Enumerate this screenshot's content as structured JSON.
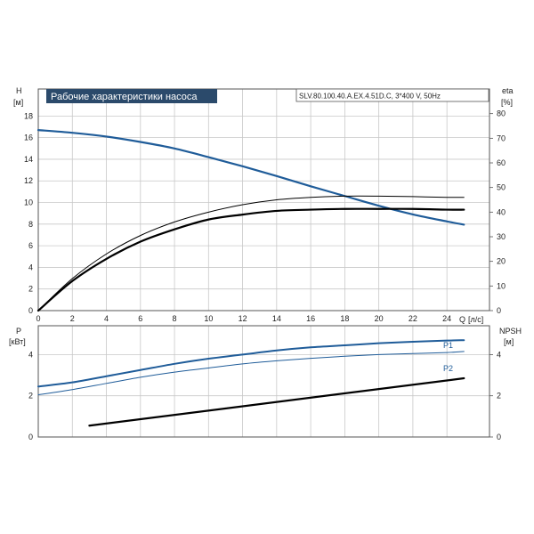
{
  "chart_data": [
    {
      "type": "line",
      "title": "Рабочие характеристики насоса",
      "model": "SLV.80.100.40.A.EX.4.51D.C, 3*400 V, 50Hz",
      "xlabel": "Q",
      "xunit": "[л/с]",
      "ylabel_left": "H",
      "yunit_left": "[м]",
      "ylabel_right": "eta",
      "yunit_right": "[%]",
      "xlim": [
        0,
        26.5
      ],
      "ylim_left": [
        0,
        20.5
      ],
      "ylim_right": [
        0,
        90
      ],
      "x_ticks": [
        "0",
        "2",
        "4",
        "6",
        "8",
        "10",
        "12",
        "14",
        "16",
        "18",
        "20",
        "22",
        "24"
      ],
      "y_ticks_left": [
        "0",
        "2",
        "4",
        "6",
        "8",
        "10",
        "12",
        "14",
        "16",
        "18"
      ],
      "y_ticks_right": [
        "0",
        "10",
        "20",
        "30",
        "40",
        "50",
        "60",
        "70",
        "80"
      ],
      "grid": true,
      "series": [
        {
          "axis": "left",
          "color": "#1f5c99",
          "x": [
            0,
            2,
            4,
            6,
            8,
            10,
            12,
            14,
            16,
            18,
            20,
            22,
            24,
            25
          ],
          "values": [
            16.7,
            16.45,
            16.1,
            15.6,
            15.0,
            14.2,
            13.35,
            12.45,
            11.5,
            10.6,
            9.7,
            8.9,
            8.25,
            7.95
          ]
        },
        {
          "axis": "right",
          "color": "#000000",
          "x": [
            0,
            2,
            4,
            6,
            8,
            10,
            12,
            14,
            16,
            18,
            20,
            22,
            24,
            25
          ],
          "values": [
            0,
            12,
            21,
            28,
            33,
            37,
            39,
            40.5,
            41,
            41.3,
            41.3,
            41.3,
            41,
            41
          ]
        },
        {
          "axis": "right",
          "color": "#000000",
          "x": [
            0,
            2,
            4,
            6,
            8,
            10,
            12,
            14,
            16,
            18,
            20,
            22,
            24,
            25
          ],
          "values": [
            0,
            13,
            23,
            30.5,
            36,
            40,
            43,
            45,
            46,
            46.5,
            46.5,
            46.3,
            46,
            46
          ]
        }
      ]
    },
    {
      "type": "line",
      "ylabel_left": "P",
      "yunit_left": "[кВт]",
      "ylabel_right": "NPSH",
      "yunit_right": "[м]",
      "xlim": [
        0,
        26.5
      ],
      "ylim_left": [
        0,
        5.4
      ],
      "ylim_right": [
        0,
        5.4
      ],
      "y_ticks_left": [
        "0",
        "2",
        "4"
      ],
      "y_ticks_right": [
        "0",
        "2",
        "4"
      ],
      "grid": true,
      "series": [
        {
          "name": "P1",
          "axis": "left",
          "color": "#1f5c99",
          "x": [
            0,
            2,
            4,
            6,
            8,
            10,
            12,
            14,
            16,
            18,
            20,
            22,
            24,
            25
          ],
          "values": [
            2.45,
            2.65,
            2.95,
            3.25,
            3.55,
            3.8,
            4.0,
            4.2,
            4.35,
            4.45,
            4.55,
            4.62,
            4.68,
            4.7
          ]
        },
        {
          "name": "P2",
          "axis": "left",
          "color": "#1f5c99",
          "x": [
            0,
            2,
            4,
            6,
            8,
            10,
            12,
            14,
            16,
            18,
            20,
            22,
            24,
            25
          ],
          "values": [
            2.05,
            2.3,
            2.6,
            2.9,
            3.15,
            3.35,
            3.55,
            3.7,
            3.82,
            3.92,
            4.0,
            4.05,
            4.1,
            4.15
          ]
        },
        {
          "axis": "right",
          "color": "#000000",
          "x": [
            3,
            25
          ],
          "values": [
            0.55,
            2.85
          ]
        }
      ]
    }
  ]
}
